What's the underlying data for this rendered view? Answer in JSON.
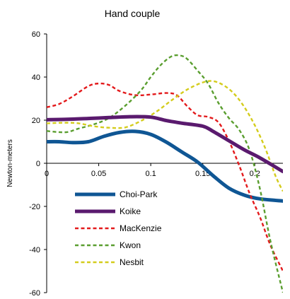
{
  "chart_data": {
    "type": "line",
    "title": "Hand couple",
    "xlabel": "",
    "ylabel": "Newton-meters",
    "xlim": [
      0,
      0.227
    ],
    "ylim": [
      -60,
      60
    ],
    "xticks": [
      0,
      0.05,
      0.1,
      0.15,
      0.2
    ],
    "xtick_labels": [
      "0",
      "0.05",
      "0.1",
      "0.15",
      "0.2"
    ],
    "yticks": [
      -60,
      -40,
      -20,
      0,
      20,
      40,
      60
    ],
    "ytick_labels": [
      "-60",
      "-40",
      "-20",
      "0",
      "20",
      "40",
      "60"
    ],
    "grid": false,
    "legend_position": "lower-left",
    "series": [
      {
        "name": "Choi-Park",
        "color": "#0f5694",
        "style": "solid",
        "x": [
          0,
          0.012,
          0.025,
          0.04,
          0.055,
          0.07,
          0.085,
          0.1,
          0.115,
          0.13,
          0.145,
          0.16,
          0.175,
          0.19,
          0.205,
          0.227
        ],
        "y": [
          10,
          10,
          9.6,
          10,
          12.5,
          14.3,
          14.8,
          13.4,
          9.8,
          5.2,
          0.6,
          -5.8,
          -11.5,
          -14.8,
          -16.5,
          -17.5
        ]
      },
      {
        "name": "Koike",
        "color": "#5a1a6e",
        "style": "solid",
        "x": [
          0,
          0.02,
          0.04,
          0.06,
          0.08,
          0.1,
          0.115,
          0.13,
          0.15,
          0.16,
          0.175,
          0.19,
          0.205,
          0.227
        ],
        "y": [
          20.2,
          20.4,
          20.8,
          21.2,
          21.6,
          21.4,
          19.8,
          18.6,
          17.2,
          14.8,
          10.5,
          6.2,
          2.5,
          -3.8
        ]
      },
      {
        "name": "MacKenzie",
        "color": "#e31a1c",
        "style": "dashed",
        "x": [
          0,
          0.012,
          0.025,
          0.04,
          0.05,
          0.06,
          0.07,
          0.085,
          0.1,
          0.115,
          0.125,
          0.135,
          0.145,
          0.155,
          0.165,
          0.175,
          0.185,
          0.195,
          0.205,
          0.215,
          0.227
        ],
        "y": [
          26,
          27.5,
          31,
          35.8,
          37,
          36.3,
          33.5,
          31.6,
          31.9,
          32.6,
          31.6,
          26.5,
          22.3,
          21.5,
          19,
          10.5,
          -1,
          -14,
          -25,
          -38,
          -50
        ]
      },
      {
        "name": "Kwon",
        "color": "#5a9e2f",
        "style": "dashed",
        "x": [
          0,
          0.01,
          0.02,
          0.03,
          0.045,
          0.06,
          0.075,
          0.09,
          0.1,
          0.11,
          0.12,
          0.128,
          0.135,
          0.145,
          0.155,
          0.165,
          0.175,
          0.185,
          0.195,
          0.205,
          0.215,
          0.227
        ],
        "y": [
          15,
          14.5,
          14.5,
          16,
          18,
          21,
          26.5,
          33.5,
          40,
          45.8,
          49.6,
          50,
          48.4,
          43,
          37,
          28,
          21,
          15.5,
          6,
          -12,
          -36,
          -60
        ]
      },
      {
        "name": "Nesbit",
        "color": "#d4cc1c",
        "style": "dashed",
        "x": [
          0,
          0.015,
          0.03,
          0.045,
          0.06,
          0.075,
          0.09,
          0.105,
          0.12,
          0.135,
          0.15,
          0.16,
          0.17,
          0.18,
          0.19,
          0.2,
          0.21,
          0.22,
          0.227
        ],
        "y": [
          18.5,
          18.8,
          18.6,
          17.2,
          16.5,
          16.6,
          19.5,
          23.8,
          29.2,
          34.2,
          37.5,
          38.1,
          36.2,
          32.3,
          26,
          17.6,
          7,
          -6,
          -13
        ]
      }
    ]
  }
}
